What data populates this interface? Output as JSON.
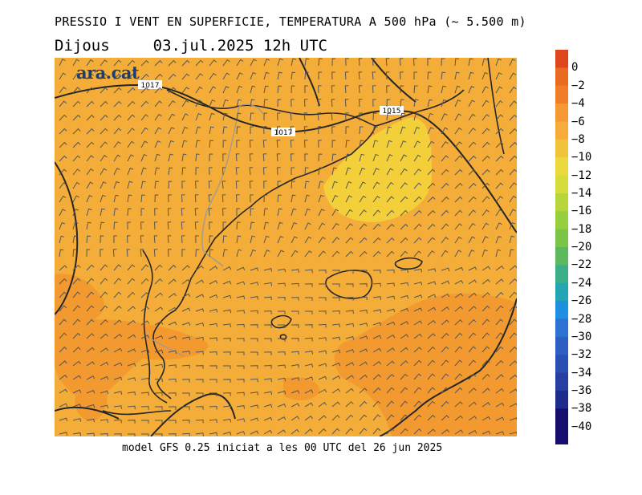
{
  "header": {
    "title": "PRESSIO I VENT EN SUPERFICIE, TEMPERATURA A 500 hPa (~ 5.500 m)",
    "day": "Dijous",
    "datetime": "03.jul.2025 12h UTC"
  },
  "logo": {
    "text": "ara.cat"
  },
  "footer": {
    "text": "model GFS 0.25 iniciat a les 00 UTC del 26 jun 2025"
  },
  "isobars": [
    {
      "label": "1017"
    },
    {
      "label": "1017"
    },
    {
      "label": "1015"
    }
  ],
  "legend": {
    "labels": [
      "0",
      "−2",
      "−4",
      "−6",
      "−8",
      "−10",
      "−12",
      "−14",
      "−16",
      "−18",
      "−20",
      "−22",
      "−24",
      "−26",
      "−28",
      "−30",
      "−32",
      "−34",
      "−36",
      "−38",
      "−40"
    ],
    "colors": [
      "#e0461e",
      "#ea6a22",
      "#f07e27",
      "#f49934",
      "#f6ab3a",
      "#f3c23b",
      "#ecd93c",
      "#d6dc3a",
      "#b7d63c",
      "#98cf3f",
      "#7cc448",
      "#5dba5c",
      "#3cae88",
      "#24a5b3",
      "#1f8fe0",
      "#2b72d3",
      "#2d5fc3",
      "#2a4fb3",
      "#263fa1",
      "#1d2b8a",
      "#150e6e"
    ]
  },
  "map": {
    "base_color": "#f4ad38",
    "warm_color": "#f29a30",
    "cool_color": "#f3cf3a"
  }
}
